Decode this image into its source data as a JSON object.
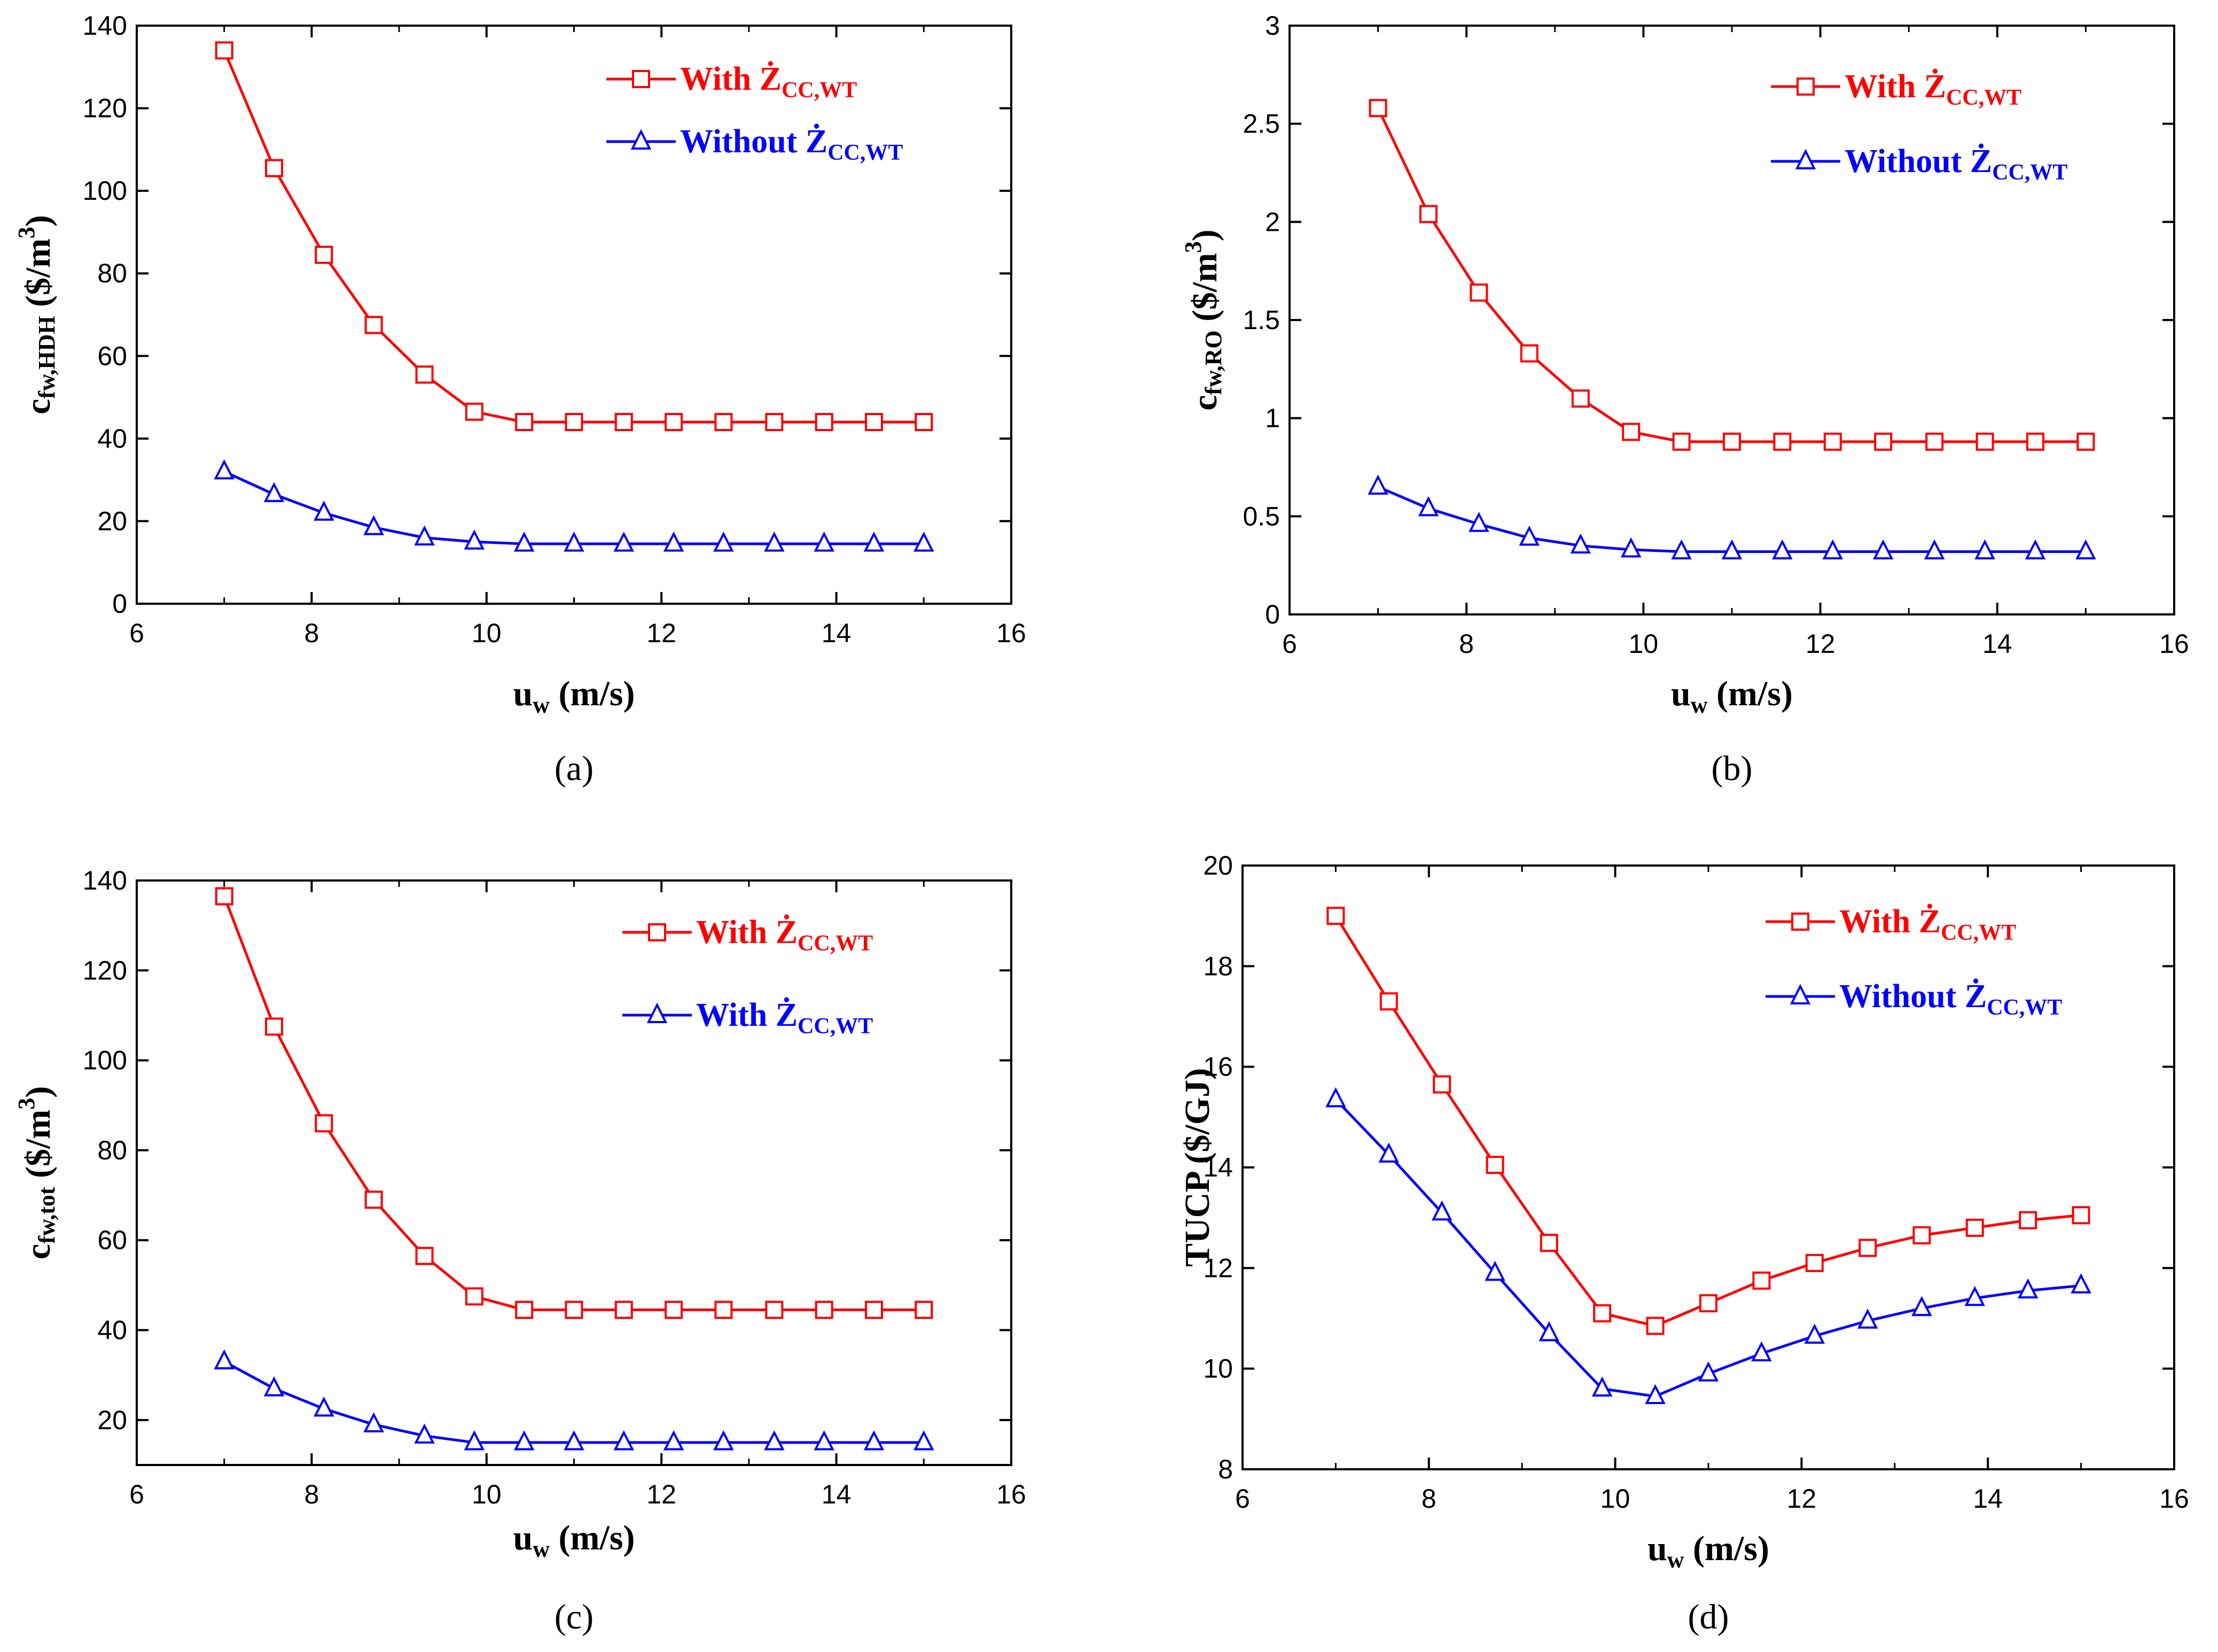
{
  "chart_data": [
    {
      "panel": "a",
      "type": "line",
      "caption": "(a)",
      "xlabel": {
        "main": "u",
        "sub": "w",
        "unit": " (m/s)"
      },
      "ylabel": {
        "main": "c",
        "sub": "fw,HDH",
        "unit": " ($/m",
        "sup": "3",
        "close": ")"
      },
      "xlim": [
        6,
        16
      ],
      "ylim": [
        0,
        140
      ],
      "xticks": [
        6,
        8,
        10,
        12,
        14,
        16
      ],
      "yticks": [
        0,
        20,
        40,
        60,
        80,
        100,
        120,
        140
      ],
      "x": [
        7.0,
        7.57,
        8.14,
        8.71,
        9.29,
        9.86,
        10.43,
        11.0,
        11.57,
        12.14,
        12.71,
        13.29,
        13.86,
        14.43,
        15.0
      ],
      "legend_position": "top-right",
      "series": [
        {
          "name": "With Ż",
          "name_sub": "CC,WT",
          "color": "#ff0000",
          "marker": "square",
          "values": [
            134,
            105.5,
            84.5,
            67.5,
            55.5,
            46.5,
            44,
            44,
            44,
            44,
            44,
            44,
            44,
            44,
            44
          ]
        },
        {
          "name": "Without Ż",
          "name_sub": "CC,WT",
          "color": "#0000ff",
          "marker": "triangle",
          "values": [
            32,
            26.5,
            22,
            18.5,
            16,
            15,
            14.5,
            14.5,
            14.5,
            14.5,
            14.5,
            14.5,
            14.5,
            14.5,
            14.5
          ]
        }
      ]
    },
    {
      "panel": "b",
      "type": "line",
      "caption": "(b)",
      "xlabel": {
        "main": "u",
        "sub": "w",
        "unit": " (m/s)"
      },
      "ylabel": {
        "main": "c",
        "sub": "fw,RO",
        "unit": " ($/m",
        "sup": "3",
        "close": ")"
      },
      "xlim": [
        6,
        16
      ],
      "ylim": [
        0,
        3
      ],
      "xticks": [
        6,
        8,
        10,
        12,
        14,
        16
      ],
      "yticks": [
        0,
        0.5,
        1,
        1.5,
        2,
        2.5,
        3
      ],
      "x": [
        7.0,
        7.57,
        8.14,
        8.71,
        9.29,
        9.86,
        10.43,
        11.0,
        11.57,
        12.14,
        12.71,
        13.29,
        13.86,
        14.43,
        15.0
      ],
      "legend_position": "top-right",
      "series": [
        {
          "name": "With Ż",
          "name_sub": "CC,WT",
          "color": "#ff0000",
          "marker": "square",
          "values": [
            2.58,
            2.04,
            1.64,
            1.33,
            1.1,
            0.93,
            0.88,
            0.88,
            0.88,
            0.88,
            0.88,
            0.88,
            0.88,
            0.88,
            0.88
          ]
        },
        {
          "name": "Without Ż",
          "name_sub": "CC,WT",
          "color": "#0000ff",
          "marker": "triangle",
          "values": [
            0.65,
            0.54,
            0.46,
            0.39,
            0.35,
            0.33,
            0.32,
            0.32,
            0.32,
            0.32,
            0.32,
            0.32,
            0.32,
            0.32,
            0.32
          ]
        }
      ]
    },
    {
      "panel": "c",
      "type": "line",
      "caption": "(c)",
      "xlabel": {
        "main": "u",
        "sub": "w",
        "unit": " (m/s)"
      },
      "ylabel": {
        "main": "c",
        "sub": "fw,tot",
        "unit": " ($/m",
        "sup": "3",
        "close": ")"
      },
      "xlim": [
        6,
        16
      ],
      "ylim": [
        10,
        140
      ],
      "xticks": [
        6,
        8,
        10,
        12,
        14,
        16
      ],
      "yticks": [
        20,
        40,
        60,
        80,
        100,
        120,
        140
      ],
      "x": [
        7.0,
        7.57,
        8.14,
        8.71,
        9.29,
        9.86,
        10.43,
        11.0,
        11.57,
        12.14,
        12.71,
        13.29,
        13.86,
        14.43,
        15.0
      ],
      "legend_position": "top-right",
      "series": [
        {
          "name": "With Ż",
          "name_sub": "CC,WT",
          "color": "#ff0000",
          "marker": "square",
          "values": [
            136.5,
            107.5,
            86,
            69,
            56.5,
            47.5,
            44.5,
            44.5,
            44.5,
            44.5,
            44.5,
            44.5,
            44.5,
            44.5,
            44.5
          ]
        },
        {
          "name": "With Ż",
          "name_sub": "CC,WT",
          "color": "#0000ff",
          "marker": "triangle",
          "values": [
            33,
            27,
            22.5,
            19,
            16.5,
            15,
            15,
            15,
            15,
            15,
            15,
            15,
            15,
            15,
            15
          ]
        }
      ]
    },
    {
      "panel": "d",
      "type": "line",
      "caption": "(d)",
      "xlabel": {
        "main": "u",
        "sub": "w",
        "unit": " (m/s)"
      },
      "ylabel": {
        "main": "TUCP",
        "sub": "",
        "unit": " ($/GJ)",
        "sup": "",
        "close": ""
      },
      "xlim": [
        6,
        16
      ],
      "ylim": [
        8,
        20
      ],
      "xticks": [
        6,
        8,
        10,
        12,
        14,
        16
      ],
      "yticks": [
        8,
        10,
        12,
        14,
        16,
        18,
        20
      ],
      "x": [
        7.0,
        7.57,
        8.14,
        8.71,
        9.29,
        9.86,
        10.43,
        11.0,
        11.57,
        12.14,
        12.71,
        13.29,
        13.86,
        14.43,
        15.0
      ],
      "legend_position": "top-right",
      "series": [
        {
          "name": "With Ż",
          "name_sub": "CC,WT",
          "color": "#ff0000",
          "marker": "square",
          "values": [
            19.0,
            17.3,
            15.65,
            14.05,
            12.5,
            11.1,
            10.85,
            11.3,
            11.75,
            12.1,
            12.4,
            12.65,
            12.8,
            12.95,
            13.05
          ]
        },
        {
          "name": "Without Ż",
          "name_sub": "CC,WT",
          "color": "#0000ff",
          "marker": "triangle",
          "values": [
            15.35,
            14.25,
            13.1,
            11.9,
            10.7,
            9.6,
            9.45,
            9.9,
            10.3,
            10.65,
            10.95,
            11.2,
            11.4,
            11.55,
            11.65
          ]
        }
      ]
    }
  ]
}
